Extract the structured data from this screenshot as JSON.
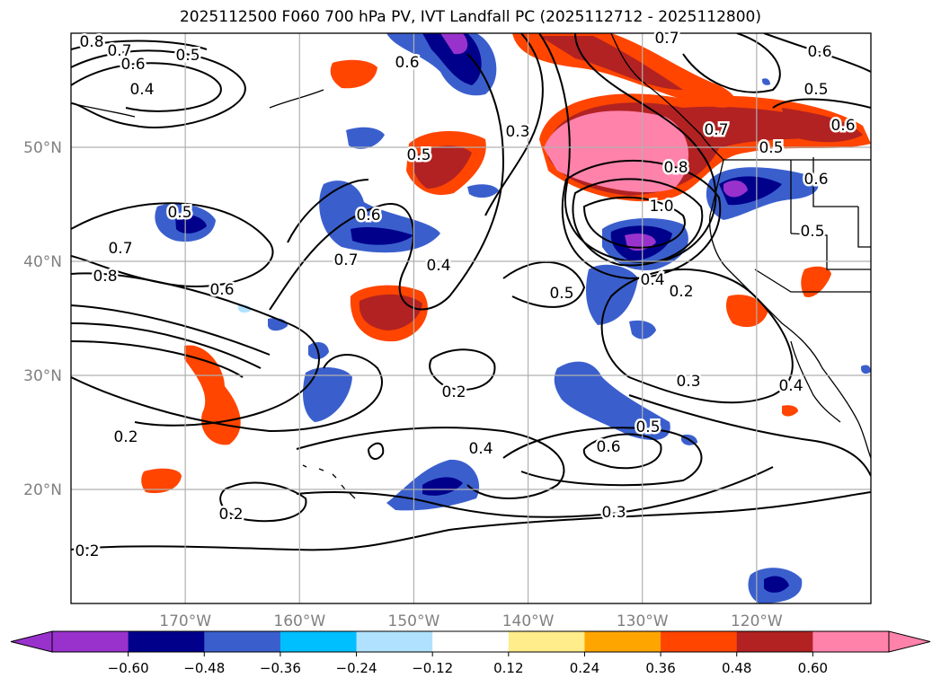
{
  "title": "2025112500 F060 700 hPa PV, IVT Landfall PC (2025112712 - 2025112800)",
  "map": {
    "lat_labels": [
      "50°N",
      "40°N",
      "30°N",
      "20°N"
    ],
    "lon_labels": [
      "170°W",
      "160°W",
      "150°W",
      "140°W",
      "130°W",
      "120°W"
    ],
    "grid": true,
    "projection": "lat-lon",
    "extent": {
      "lon_min": -180,
      "lon_max": -110,
      "lat_min": 10,
      "lat_max": 60
    }
  },
  "contour_labels": [
    "0.8",
    "0.7",
    "0.6",
    "0.5",
    "0.4",
    "0.6",
    "0.7",
    "0.3",
    "0.5",
    "0.5",
    "0.7",
    "0.8",
    "0.6",
    "0.6",
    "0.7",
    "0.4",
    "0.5",
    "0.8",
    "1.0",
    "0.7",
    "0.6",
    "0.5",
    "0.4",
    "0.2",
    "0.5",
    "0.3",
    "0.2",
    "0.2",
    "0.4",
    "0.6",
    "0.5",
    "0.2",
    "0.3",
    "0.4",
    "0.2",
    "0.6",
    "0.5",
    "0.6"
  ],
  "colorbar": {
    "tick_labels": [
      "−0.60",
      "−0.48",
      "−0.36",
      "−0.24",
      "−0.12",
      "0.12",
      "0.24",
      "0.36",
      "0.48",
      "0.60"
    ],
    "colors": [
      "#9932cc",
      "#00008b",
      "#3a5fcd",
      "#00bfff",
      "#b0e2ff",
      "#ffffff",
      "#ffec8b",
      "#ffa500",
      "#ff4500",
      "#b22222",
      "#ff82ab"
    ],
    "extend": "both"
  },
  "colors": {
    "positive_high": "#ff82ab",
    "negative_low": "#00008b",
    "contour": "#000000",
    "grid": "#b0b0b0"
  }
}
